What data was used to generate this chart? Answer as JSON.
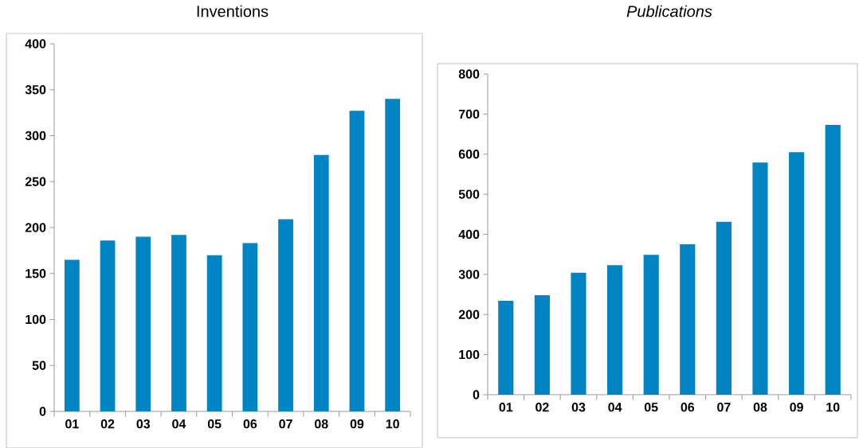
{
  "chart_data": [
    {
      "type": "bar",
      "title": "Inventions",
      "categories": [
        "01",
        "02",
        "03",
        "04",
        "05",
        "06",
        "07",
        "08",
        "09",
        "10"
      ],
      "values": [
        165,
        186,
        190,
        192,
        170,
        183,
        209,
        279,
        327,
        340
      ],
      "color": "#0084c4",
      "ylim": [
        0,
        400
      ],
      "yticks": [
        0,
        50,
        100,
        150,
        200,
        250,
        300,
        350,
        400
      ],
      "grid": false
    },
    {
      "type": "bar",
      "title": "Publications",
      "categories": [
        "01",
        "02",
        "03",
        "04",
        "05",
        "06",
        "07",
        "08",
        "09",
        "10"
      ],
      "values": [
        234,
        248,
        304,
        323,
        349,
        375,
        431,
        579,
        605,
        673
      ],
      "color": "#0084c4",
      "ylim": [
        0,
        800
      ],
      "yticks": [
        0,
        100,
        200,
        300,
        400,
        500,
        600,
        700,
        800
      ],
      "grid": false
    }
  ]
}
